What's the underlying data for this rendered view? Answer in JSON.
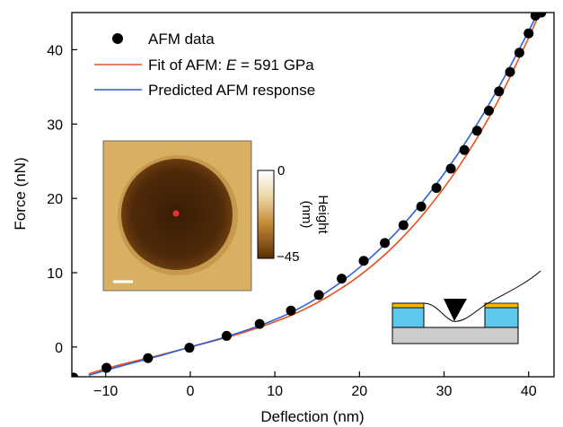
{
  "chart_data": {
    "type": "scatter",
    "title": "",
    "xlabel": "Deflection (nm)",
    "ylabel": "Force (nN)",
    "xlim": [
      -14,
      43
    ],
    "ylim": [
      -4,
      45
    ],
    "xticks": [
      -10,
      0,
      10,
      20,
      30,
      40
    ],
    "yticks": [
      0,
      10,
      20,
      30,
      40
    ],
    "grid": false,
    "legend_position": "top-left",
    "series": [
      {
        "name": "AFM data",
        "kind": "points",
        "color": "#000000",
        "x": [
          -13.8,
          -9.9,
          -5.0,
          -0.1,
          4.3,
          8.2,
          11.9,
          15.2,
          17.9,
          20.5,
          23.0,
          25.2,
          27.3,
          29.1,
          30.8,
          32.4,
          33.9,
          35.3,
          36.5,
          37.8,
          38.9,
          40.0,
          40.8,
          41.5
        ],
        "y": [
          -4.1,
          -2.8,
          -1.5,
          -0.1,
          1.5,
          3.1,
          4.9,
          7.0,
          9.2,
          11.6,
          14.0,
          16.4,
          18.9,
          21.4,
          24.0,
          26.5,
          29.1,
          31.8,
          34.4,
          37.0,
          39.6,
          42.2,
          44.6,
          45.0
        ]
      },
      {
        "name": "Fit of AFM: E = 591 GPa",
        "kind": "line",
        "color": "#e8501e",
        "x": [
          -12,
          -8,
          -4,
          0,
          4,
          8,
          12,
          16,
          20,
          24,
          28,
          32,
          36,
          40,
          42
        ],
        "y": [
          -3.6,
          -2.3,
          -1.2,
          0,
          1.2,
          2.6,
          4.3,
          6.6,
          9.6,
          13.5,
          18.5,
          24.7,
          32.3,
          41.6,
          46.9
        ]
      },
      {
        "name": "Predicted AFM response",
        "kind": "line",
        "color": "#2f5fd6",
        "x": [
          -12,
          -8,
          -4,
          0,
          4,
          8,
          12,
          16,
          20,
          24,
          28,
          32,
          36,
          40,
          42
        ],
        "y": [
          -3.8,
          -2.5,
          -1.3,
          0,
          1.3,
          2.8,
          4.7,
          7.3,
          10.7,
          15.0,
          20.3,
          26.6,
          34.0,
          42.5,
          47.2
        ]
      }
    ],
    "legend": {
      "data_label": "AFM data",
      "fit_prefix": "Fit of AFM: ",
      "fit_var": "E",
      "fit_suffix": " = 591 GPa",
      "pred_label": "Predicted AFM response"
    },
    "inset_afm": {
      "colorbar_max": "0",
      "colorbar_min": "−45",
      "colorbar_label": "Height (nm)",
      "colorbar_label_line1": "Height",
      "colorbar_label_line2": "(nm)",
      "background_color": "#d8b063",
      "well_color": "#4a2608",
      "marker_color": "#e2362a",
      "scalebar_color": "#ffffff"
    },
    "inset_schematic": {
      "substrate_color": "#cccccc",
      "pillar_color": "#5cc8ee",
      "contact_color": "#f4b800",
      "tip_color": "#000000"
    }
  }
}
